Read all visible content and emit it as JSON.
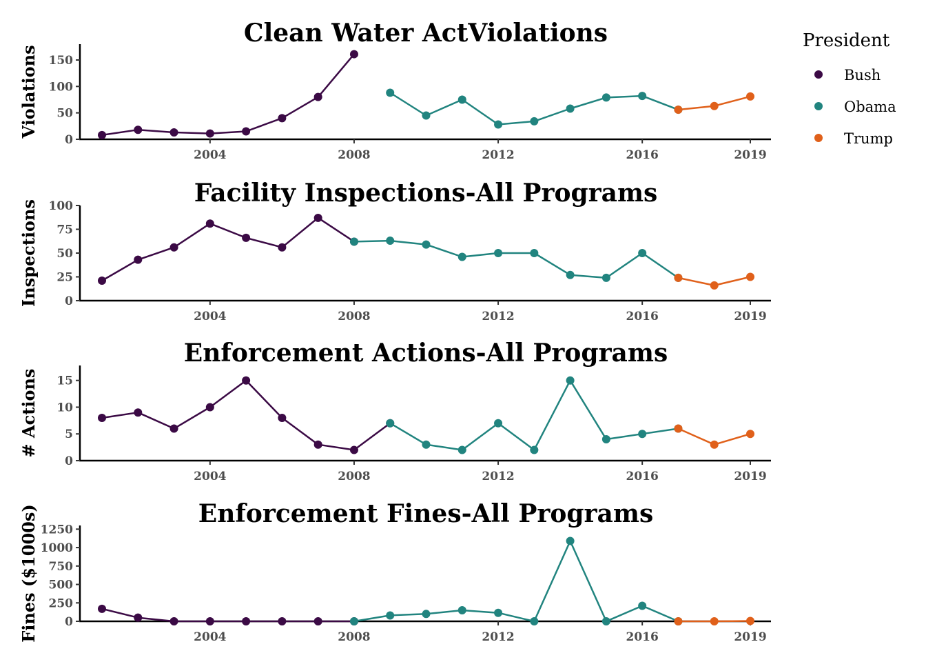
{
  "legend": {
    "title": "President",
    "items": [
      {
        "label": "Bush",
        "color": "#3b0a45"
      },
      {
        "label": "Obama",
        "color": "#21847f"
      },
      {
        "label": "Trump",
        "color": "#e0601a"
      }
    ]
  },
  "chart_data": [
    {
      "type": "line",
      "title": "Clean Water ActViolations",
      "xlabel": "",
      "ylabel": "Violations",
      "xlim": [
        2001,
        2019
      ],
      "ylim": [
        0,
        180
      ],
      "x_ticks": [
        2004,
        2008,
        2012,
        2016,
        2019
      ],
      "y_ticks": [
        0,
        50,
        100,
        150
      ],
      "grid": false,
      "legend_position": "right",
      "series": [
        {
          "name": "Bush",
          "x": [
            2001,
            2002,
            2003,
            2004,
            2005,
            2006,
            2007,
            2008
          ],
          "values": [
            8,
            18,
            13,
            11,
            15,
            40,
            80,
            161
          ]
        },
        {
          "name": "Obama",
          "x": [
            2009,
            2010,
            2011,
            2012,
            2013,
            2014,
            2015,
            2016,
            2017
          ],
          "values": [
            88,
            45,
            75,
            28,
            34,
            58,
            79,
            82,
            56
          ]
        },
        {
          "name": "Trump",
          "x": [
            2017,
            2018,
            2019
          ],
          "values": [
            56,
            63,
            81
          ]
        }
      ]
    },
    {
      "type": "line",
      "title": "Facility Inspections-All Programs",
      "xlabel": "",
      "ylabel": "Inspections",
      "xlim": [
        2001,
        2019
      ],
      "ylim": [
        0,
        100
      ],
      "x_ticks": [
        2004,
        2008,
        2012,
        2016,
        2019
      ],
      "y_ticks": [
        0,
        25,
        50,
        75,
        100
      ],
      "grid": false,
      "legend_position": "right",
      "series": [
        {
          "name": "Bush",
          "x": [
            2001,
            2002,
            2003,
            2004,
            2005,
            2006,
            2007,
            2008
          ],
          "values": [
            21,
            43,
            56,
            81,
            66,
            56,
            87,
            62
          ]
        },
        {
          "name": "Obama",
          "x": [
            2008,
            2009,
            2010,
            2011,
            2012,
            2013,
            2014,
            2015,
            2016,
            2017
          ],
          "values": [
            62,
            63,
            59,
            46,
            50,
            50,
            27,
            24,
            50,
            24
          ]
        },
        {
          "name": "Trump",
          "x": [
            2017,
            2018,
            2019
          ],
          "values": [
            24,
            16,
            25
          ]
        }
      ]
    },
    {
      "type": "line",
      "title": "Enforcement Actions-All Programs",
      "xlabel": "",
      "ylabel": "# Actions",
      "xlim": [
        2001,
        2019
      ],
      "ylim": [
        0,
        17.8
      ],
      "x_ticks": [
        2004,
        2008,
        2012,
        2016,
        2019
      ],
      "y_ticks": [
        0,
        5,
        10,
        15
      ],
      "grid": false,
      "legend_position": "right",
      "series": [
        {
          "name": "Bush",
          "x": [
            2001,
            2002,
            2003,
            2004,
            2005,
            2006,
            2007,
            2008,
            2009
          ],
          "values": [
            8,
            9,
            6,
            10,
            15,
            8,
            3,
            2,
            7
          ]
        },
        {
          "name": "Obama",
          "x": [
            2009,
            2010,
            2011,
            2012,
            2013,
            2014,
            2015,
            2016,
            2017
          ],
          "values": [
            7,
            3,
            2,
            7,
            2,
            15,
            4,
            5,
            6
          ]
        },
        {
          "name": "Trump",
          "x": [
            2017,
            2018,
            2019
          ],
          "values": [
            6,
            3,
            5
          ]
        }
      ]
    },
    {
      "type": "line",
      "title": "Enforcement Fines-All Programs",
      "xlabel": "",
      "ylabel": "Fines ($1000s)",
      "xlim": [
        2001,
        2019
      ],
      "ylim": [
        0,
        1300
      ],
      "x_ticks": [
        2004,
        2008,
        2012,
        2016,
        2019
      ],
      "y_ticks": [
        0,
        250,
        500,
        750,
        1000,
        1250
      ],
      "grid": false,
      "legend_position": "right",
      "series": [
        {
          "name": "Bush",
          "x": [
            2001,
            2002,
            2003,
            2004,
            2005,
            2006,
            2007,
            2008
          ],
          "values": [
            170,
            50,
            0,
            0,
            0,
            0,
            0,
            0
          ]
        },
        {
          "name": "Obama",
          "x": [
            2008,
            2009,
            2010,
            2011,
            2012,
            2013,
            2014,
            2015,
            2016,
            2017
          ],
          "values": [
            0,
            80,
            100,
            150,
            115,
            0,
            1090,
            0,
            210,
            0
          ]
        },
        {
          "name": "Trump",
          "x": [
            2017,
            2018,
            2019
          ],
          "values": [
            0,
            0,
            5
          ]
        }
      ]
    }
  ]
}
